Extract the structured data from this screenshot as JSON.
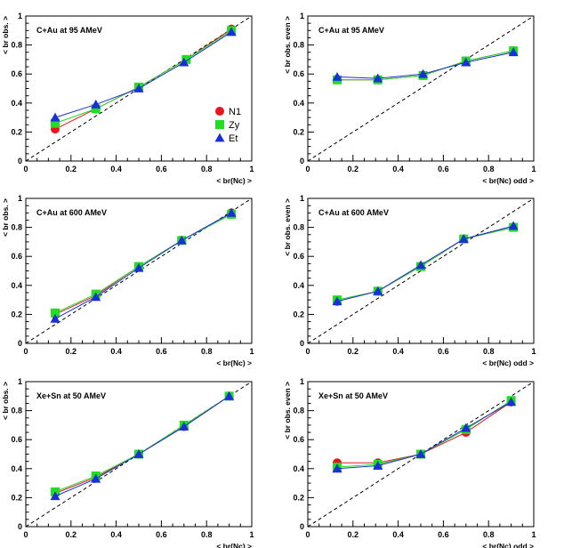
{
  "colors": {
    "N1": "#e8141e",
    "Zy": "#22dd22",
    "Et": "#1a2fd8",
    "reference_line": "#000000"
  },
  "legend": {
    "entries": [
      {
        "name": "N1",
        "marker": "circle"
      },
      {
        "name": "Zy",
        "marker": "square"
      },
      {
        "name": "Et",
        "marker": "triangle"
      }
    ]
  },
  "chart_data": [
    {
      "type": "line",
      "title": "C+Au at 95 AMeV",
      "xlabel": "< br(Nc) >",
      "ylabel": "< br obs. >",
      "xlim": [
        0,
        1
      ],
      "ylim": [
        0,
        1
      ],
      "xticks": [
        "0",
        "0.2",
        "0.4",
        "0.6",
        "0.8",
        "1"
      ],
      "yticks": [
        "0",
        "0.2",
        "0.4",
        "0.6",
        "0.8",
        "1"
      ],
      "reference_line": "y = x (dashed)",
      "legend_visible": true,
      "series": [
        {
          "name": "N1",
          "x": [
            0.13,
            0.31,
            0.5,
            0.71,
            0.91
          ],
          "y": [
            0.22,
            0.36,
            0.51,
            0.7,
            0.91
          ]
        },
        {
          "name": "Zy",
          "x": [
            0.13,
            0.31,
            0.5,
            0.71,
            0.91
          ],
          "y": [
            0.26,
            0.36,
            0.51,
            0.7,
            0.9
          ]
        },
        {
          "name": "Et",
          "x": [
            0.13,
            0.31,
            0.5,
            0.7,
            0.91
          ],
          "y": [
            0.3,
            0.39,
            0.5,
            0.68,
            0.89
          ]
        }
      ]
    },
    {
      "type": "line",
      "title": "C+Au at 95 AMeV",
      "xlabel": "< br(Nc) odd >",
      "ylabel": "< br obs. even >",
      "xlim": [
        0,
        1
      ],
      "ylim": [
        0,
        1
      ],
      "xticks": [
        "0",
        "0.2",
        "0.4",
        "0.6",
        "0.8",
        "1"
      ],
      "yticks": [
        "0",
        "0.2",
        "0.4",
        "0.6",
        "0.8",
        "1"
      ],
      "reference_line": "y = x (dashed)",
      "legend_visible": false,
      "series": [
        {
          "name": "N1",
          "x": [
            0.13,
            0.31,
            0.51,
            0.7,
            0.91
          ],
          "y": [
            0.56,
            0.56,
            0.59,
            0.69,
            0.76
          ]
        },
        {
          "name": "Zy",
          "x": [
            0.13,
            0.31,
            0.51,
            0.7,
            0.91
          ],
          "y": [
            0.56,
            0.56,
            0.59,
            0.69,
            0.76
          ]
        },
        {
          "name": "Et",
          "x": [
            0.13,
            0.31,
            0.51,
            0.7,
            0.91
          ],
          "y": [
            0.58,
            0.57,
            0.6,
            0.68,
            0.75
          ]
        }
      ]
    },
    {
      "type": "line",
      "title": "C+Au at 600 AMeV",
      "xlabel": "< br(Nc) >",
      "ylabel": "< br obs. >",
      "xlim": [
        0,
        1
      ],
      "ylim": [
        0,
        1
      ],
      "xticks": [
        "0",
        "0.2",
        "0.4",
        "0.6",
        "0.8",
        "1"
      ],
      "yticks": [
        "0",
        "0.2",
        "0.4",
        "0.6",
        "0.8",
        "1"
      ],
      "reference_line": "y = x (dashed)",
      "legend_visible": false,
      "series": [
        {
          "name": "N1",
          "x": [
            0.13,
            0.31,
            0.5,
            0.69,
            0.91
          ],
          "y": [
            0.2,
            0.33,
            0.53,
            0.71,
            0.9
          ]
        },
        {
          "name": "Zy",
          "x": [
            0.13,
            0.31,
            0.5,
            0.69,
            0.91
          ],
          "y": [
            0.21,
            0.34,
            0.53,
            0.71,
            0.89
          ]
        },
        {
          "name": "Et",
          "x": [
            0.13,
            0.31,
            0.5,
            0.69,
            0.91
          ],
          "y": [
            0.17,
            0.32,
            0.52,
            0.71,
            0.9
          ]
        }
      ]
    },
    {
      "type": "line",
      "title": "C+Au at 600 AMeV",
      "xlabel": "< br(Nc) odd >",
      "ylabel": "< br obs. even >",
      "xlim": [
        0,
        1
      ],
      "ylim": [
        0,
        1
      ],
      "xticks": [
        "0",
        "0.2",
        "0.4",
        "0.6",
        "0.8",
        "1"
      ],
      "yticks": [
        "0",
        "0.2",
        "0.4",
        "0.6",
        "0.8",
        "1"
      ],
      "reference_line": "y = x (dashed)",
      "legend_visible": false,
      "series": [
        {
          "name": "N1",
          "x": [
            0.13,
            0.31,
            0.5,
            0.69,
            0.91
          ],
          "y": [
            0.29,
            0.36,
            0.53,
            0.72,
            0.8
          ]
        },
        {
          "name": "Zy",
          "x": [
            0.13,
            0.31,
            0.5,
            0.69,
            0.91
          ],
          "y": [
            0.3,
            0.36,
            0.53,
            0.72,
            0.8
          ]
        },
        {
          "name": "Et",
          "x": [
            0.13,
            0.31,
            0.5,
            0.69,
            0.91
          ],
          "y": [
            0.29,
            0.36,
            0.54,
            0.72,
            0.81
          ]
        }
      ]
    },
    {
      "type": "line",
      "title": "Xe+Sn at 50 AMeV",
      "xlabel": "< br(Nc) >",
      "ylabel": "< br obs. >",
      "xlim": [
        0,
        1
      ],
      "ylim": [
        0,
        1
      ],
      "xticks": [
        "0",
        "0.2",
        "0.4",
        "0.6",
        "0.8",
        "1"
      ],
      "yticks": [
        "0",
        "0.2",
        "0.4",
        "0.6",
        "0.8",
        "1"
      ],
      "reference_line": "y = x (dashed)",
      "legend_visible": false,
      "series": [
        {
          "name": "N1",
          "x": [
            0.13,
            0.31,
            0.5,
            0.7,
            0.9
          ],
          "y": [
            0.23,
            0.34,
            0.5,
            0.69,
            0.9
          ]
        },
        {
          "name": "Zy",
          "x": [
            0.13,
            0.31,
            0.5,
            0.7,
            0.9
          ],
          "y": [
            0.24,
            0.35,
            0.5,
            0.7,
            0.9
          ]
        },
        {
          "name": "Et",
          "x": [
            0.13,
            0.31,
            0.5,
            0.7,
            0.9
          ],
          "y": [
            0.21,
            0.33,
            0.5,
            0.69,
            0.9
          ]
        }
      ]
    },
    {
      "type": "line",
      "title": "Xe+Sn at 50 AMeV",
      "xlabel": "< br(Nc) odd >",
      "ylabel": "< br obs. even >",
      "xlim": [
        0,
        1
      ],
      "ylim": [
        0,
        1
      ],
      "xticks": [
        "0",
        "0.2",
        "0.4",
        "0.6",
        "0.8",
        "1"
      ],
      "yticks": [
        "0",
        "0.2",
        "0.4",
        "0.6",
        "0.8",
        "1"
      ],
      "reference_line": "y = x (dashed)",
      "legend_visible": false,
      "series": [
        {
          "name": "N1",
          "x": [
            0.13,
            0.31,
            0.5,
            0.7,
            0.9
          ],
          "y": [
            0.44,
            0.44,
            0.5,
            0.65,
            0.86
          ]
        },
        {
          "name": "Zy",
          "x": [
            0.13,
            0.31,
            0.5,
            0.7,
            0.9
          ],
          "y": [
            0.41,
            0.43,
            0.5,
            0.67,
            0.87
          ]
        },
        {
          "name": "Et",
          "x": [
            0.13,
            0.31,
            0.5,
            0.7,
            0.9
          ],
          "y": [
            0.4,
            0.42,
            0.5,
            0.68,
            0.86
          ]
        }
      ]
    }
  ]
}
